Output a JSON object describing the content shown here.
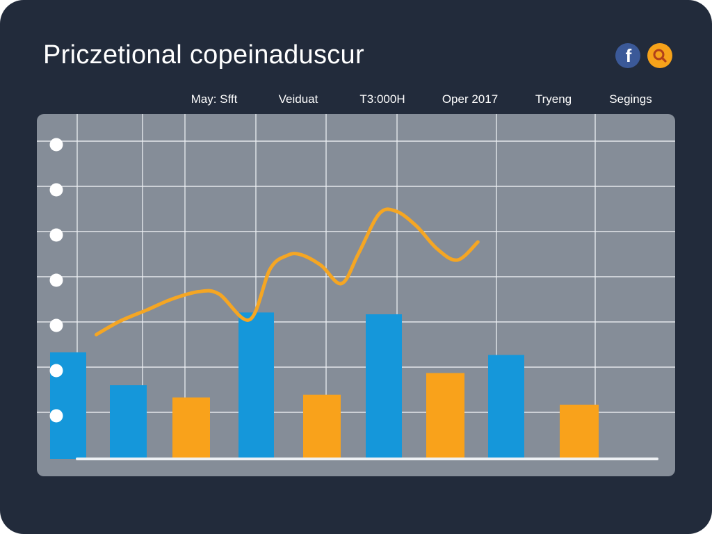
{
  "header": {
    "title": "Priczetional copeinaduscur",
    "icons": [
      {
        "name": "facebook-icon",
        "glyph": "f",
        "color": "#3b5998"
      },
      {
        "name": "search-icon",
        "color": "#f6a21a"
      }
    ]
  },
  "tabs": [
    {
      "label": "May: Sfft"
    },
    {
      "label": "Veiduat"
    },
    {
      "label": "T3:000H"
    },
    {
      "label": "Oper 2017"
    },
    {
      "label": "Tryeng"
    },
    {
      "label": "Segings"
    }
  ],
  "colors": {
    "background": "#222b3b",
    "plot_background": "#858d98",
    "grid": "#eef1f4",
    "title": "#ffffff",
    "tab_text": "#ffffff",
    "bar_blue": "#1597da",
    "bar_orange": "#f9a21b",
    "line": "#f5a623",
    "marker": "#ffffff"
  },
  "chart_data": {
    "type": "bar",
    "title": "",
    "xlabel": "",
    "ylabel": "",
    "grid": true,
    "ylim": [
      0,
      8
    ],
    "y_ticks": [
      1,
      2,
      3,
      4,
      5,
      6,
      7,
      8
    ],
    "bars": [
      {
        "index": 0,
        "value": 2.36,
        "color": "blue"
      },
      {
        "index": 1,
        "value": 1.63,
        "color": "blue"
      },
      {
        "index": 2,
        "value": 1.36,
        "color": "orange"
      },
      {
        "index": 3,
        "value": 3.24,
        "color": "blue"
      },
      {
        "index": 4,
        "value": 1.42,
        "color": "orange"
      },
      {
        "index": 5,
        "value": 3.2,
        "color": "blue"
      },
      {
        "index": 6,
        "value": 1.9,
        "color": "orange"
      },
      {
        "index": 7,
        "value": 2.3,
        "color": "blue"
      },
      {
        "index": 8,
        "value": 1.2,
        "color": "orange"
      }
    ],
    "line": {
      "x": [
        0.25,
        0.6,
        1.0,
        1.35,
        1.75,
        2.05,
        2.5,
        2.8,
        3.05,
        3.25,
        3.55,
        3.85,
        4.1,
        4.4,
        4.65,
        4.95,
        5.25,
        5.55,
        5.85
      ],
      "values": [
        2.75,
        3.05,
        3.3,
        3.53,
        3.7,
        3.65,
        3.08,
        4.2,
        4.5,
        4.52,
        4.28,
        3.88,
        4.55,
        5.42,
        5.48,
        5.15,
        4.65,
        4.4,
        4.8
      ]
    }
  }
}
